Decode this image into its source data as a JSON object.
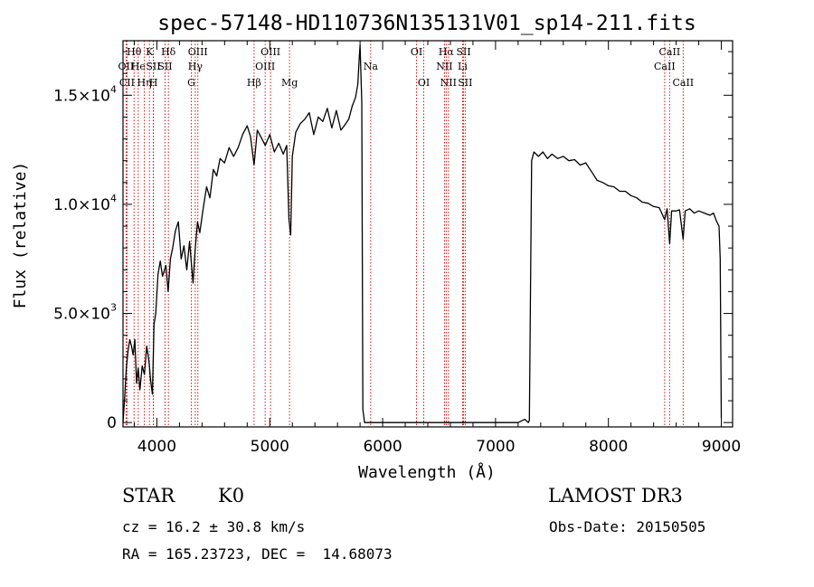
{
  "chart_data": {
    "type": "line",
    "title": "spec-57148-HD110736N135131V01_sp14-211.fits",
    "xlabel": "Wavelength (Å)",
    "ylabel": "Flux (relative)",
    "xlim": [
      3700,
      9100
    ],
    "ylim": [
      -200,
      17500
    ],
    "x_ticks": [
      4000,
      5000,
      6000,
      7000,
      8000,
      9000
    ],
    "x_tick_labels": [
      "4000",
      "5000",
      "6000",
      "7000",
      "8000",
      "9000"
    ],
    "y_ticks": [
      0,
      5000,
      10000,
      15000
    ],
    "y_tick_labels": [
      {
        "mantissa": "0",
        "exp": ""
      },
      {
        "mantissa": "5.0×10",
        "exp": "3"
      },
      {
        "mantissa": "1.0×10",
        "exp": "4"
      },
      {
        "mantissa": "1.5×10",
        "exp": "4"
      }
    ],
    "series": [
      {
        "name": "spectrum",
        "color": "#000000",
        "points": [
          [
            3700,
            0
          ],
          [
            3715,
            1200
          ],
          [
            3730,
            2500
          ],
          [
            3745,
            3300
          ],
          [
            3760,
            3800
          ],
          [
            3775,
            3500
          ],
          [
            3790,
            3100
          ],
          [
            3805,
            3800
          ],
          [
            3820,
            1800
          ],
          [
            3835,
            2500
          ],
          [
            3850,
            1500
          ],
          [
            3870,
            2600
          ],
          [
            3890,
            2200
          ],
          [
            3910,
            3500
          ],
          [
            3930,
            2800
          ],
          [
            3945,
            1900
          ],
          [
            3960,
            1300
          ],
          [
            3975,
            4500
          ],
          [
            3990,
            5000
          ],
          [
            4010,
            6800
          ],
          [
            4030,
            7400
          ],
          [
            4050,
            6700
          ],
          [
            4080,
            7200
          ],
          [
            4100,
            6000
          ],
          [
            4120,
            7500
          ],
          [
            4140,
            8000
          ],
          [
            4165,
            8800
          ],
          [
            4190,
            9200
          ],
          [
            4215,
            7500
          ],
          [
            4240,
            8100
          ],
          [
            4265,
            7000
          ],
          [
            4290,
            8300
          ],
          [
            4320,
            6400
          ],
          [
            4340,
            8000
          ],
          [
            4360,
            9200
          ],
          [
            4380,
            8700
          ],
          [
            4410,
            9800
          ],
          [
            4440,
            10800
          ],
          [
            4470,
            10300
          ],
          [
            4500,
            11600
          ],
          [
            4530,
            11300
          ],
          [
            4560,
            12100
          ],
          [
            4600,
            11900
          ],
          [
            4640,
            12600
          ],
          [
            4680,
            12200
          ],
          [
            4720,
            12600
          ],
          [
            4760,
            13200
          ],
          [
            4800,
            13600
          ],
          [
            4830,
            13100
          ],
          [
            4861,
            11800
          ],
          [
            4890,
            13400
          ],
          [
            4920,
            13100
          ],
          [
            4960,
            12700
          ],
          [
            5000,
            13200
          ],
          [
            5040,
            12400
          ],
          [
            5080,
            12800
          ],
          [
            5120,
            12300
          ],
          [
            5150,
            12700
          ],
          [
            5170,
            9300
          ],
          [
            5185,
            8600
          ],
          [
            5200,
            12200
          ],
          [
            5230,
            13300
          ],
          [
            5270,
            13700
          ],
          [
            5310,
            13900
          ],
          [
            5350,
            14200
          ],
          [
            5390,
            13200
          ],
          [
            5430,
            14000
          ],
          [
            5470,
            13800
          ],
          [
            5510,
            14400
          ],
          [
            5550,
            13500
          ],
          [
            5590,
            14300
          ],
          [
            5630,
            13400
          ],
          [
            5660,
            13600
          ],
          [
            5700,
            13900
          ],
          [
            5730,
            14500
          ],
          [
            5760,
            14900
          ],
          [
            5780,
            15500
          ],
          [
            5790,
            16500
          ],
          [
            5800,
            17300
          ],
          [
            5815,
            14700
          ],
          [
            5825,
            600
          ],
          [
            5840,
            0
          ],
          [
            5890,
            0
          ],
          [
            6000,
            0
          ],
          [
            6200,
            0
          ],
          [
            6500,
            0
          ],
          [
            6800,
            0
          ],
          [
            7000,
            0
          ],
          [
            7100,
            0
          ],
          [
            7200,
            0
          ],
          [
            7260,
            150
          ],
          [
            7290,
            0
          ],
          [
            7300,
            100
          ],
          [
            7320,
            12000
          ],
          [
            7340,
            12400
          ],
          [
            7380,
            12200
          ],
          [
            7420,
            12400
          ],
          [
            7460,
            12100
          ],
          [
            7500,
            12300
          ],
          [
            7550,
            12100
          ],
          [
            7600,
            12200
          ],
          [
            7650,
            12000
          ],
          [
            7700,
            12050
          ],
          [
            7750,
            11800
          ],
          [
            7800,
            11900
          ],
          [
            7850,
            11500
          ],
          [
            7900,
            11100
          ],
          [
            7950,
            11000
          ],
          [
            8000,
            10850
          ],
          [
            8050,
            10800
          ],
          [
            8100,
            10600
          ],
          [
            8150,
            10600
          ],
          [
            8200,
            10400
          ],
          [
            8250,
            10300
          ],
          [
            8300,
            10100
          ],
          [
            8350,
            10050
          ],
          [
            8400,
            9900
          ],
          [
            8450,
            9850
          ],
          [
            8498,
            9300
          ],
          [
            8520,
            9800
          ],
          [
            8542,
            8200
          ],
          [
            8560,
            9700
          ],
          [
            8600,
            9700
          ],
          [
            8630,
            9750
          ],
          [
            8662,
            8400
          ],
          [
            8680,
            9700
          ],
          [
            8720,
            9800
          ],
          [
            8760,
            9600
          ],
          [
            8800,
            9700
          ],
          [
            8850,
            9600
          ],
          [
            8900,
            9500
          ],
          [
            8930,
            9600
          ],
          [
            8960,
            9200
          ],
          [
            8980,
            9000
          ],
          [
            8990,
            7500
          ],
          [
            9000,
            200
          ]
        ]
      }
    ],
    "line_markers": [
      {
        "label": "Hθ",
        "wavelength": 3798,
        "row": 0
      },
      {
        "label": "OII",
        "wavelength": 3727,
        "row": 1
      },
      {
        "label": "CII",
        "wavelength": 3735,
        "row": 2
      },
      {
        "label": "He",
        "wavelength": 3835,
        "row": 1
      },
      {
        "label": "Hη",
        "wavelength": 3889,
        "row": 2
      },
      {
        "label": "K",
        "wavelength": 3934,
        "row": 0
      },
      {
        "label": "SII",
        "wavelength": 3968,
        "row": 1
      },
      {
        "label": "H",
        "wavelength": 3970,
        "row": 2
      },
      {
        "label": "Hδ",
        "wavelength": 4102,
        "row": 0
      },
      {
        "label": "SII",
        "wavelength": 4072,
        "row": 1
      },
      {
        "label": "OIII",
        "wavelength": 4363,
        "row": 0
      },
      {
        "label": "Hγ",
        "wavelength": 4340,
        "row": 1
      },
      {
        "label": "G",
        "wavelength": 4305,
        "row": 2
      },
      {
        "label": "Hβ",
        "wavelength": 4861,
        "row": 2
      },
      {
        "label": "OIII",
        "wavelength": 4959,
        "row": 1
      },
      {
        "label": "OIII",
        "wavelength": 5007,
        "row": 0
      },
      {
        "label": "Mg",
        "wavelength": 5175,
        "row": 2
      },
      {
        "label": "Na",
        "wavelength": 5894,
        "row": 1
      },
      {
        "label": "OI",
        "wavelength": 6300,
        "row": 0
      },
      {
        "label": "OI",
        "wavelength": 6364,
        "row": 2
      },
      {
        "label": "Hα",
        "wavelength": 6563,
        "row": 0
      },
      {
        "label": "NII",
        "wavelength": 6548,
        "row": 1
      },
      {
        "label": "NII",
        "wavelength": 6583,
        "row": 2
      },
      {
        "label": "SII",
        "wavelength": 6717,
        "row": 0
      },
      {
        "label": "Li",
        "wavelength": 6708,
        "row": 1
      },
      {
        "label": "SII",
        "wavelength": 6731,
        "row": 2
      },
      {
        "label": "CaII",
        "wavelength": 8542,
        "row": 0
      },
      {
        "label": "CaII",
        "wavelength": 8498,
        "row": 1
      },
      {
        "label": "CaII",
        "wavelength": 8662,
        "row": 2
      }
    ],
    "colors": {
      "axes": "#000000",
      "line": "#000000",
      "markers": "#cc0000",
      "background": "#ffffff"
    }
  },
  "info": {
    "object_class": "STAR",
    "subclass": "K0",
    "survey": "LAMOST DR3",
    "redshift": "cz = 16.2 ± 30.8 km/s",
    "obs_date": "Obs-Date: 20150505",
    "coords": "RA = 165.23723, DEC =  14.68073"
  }
}
